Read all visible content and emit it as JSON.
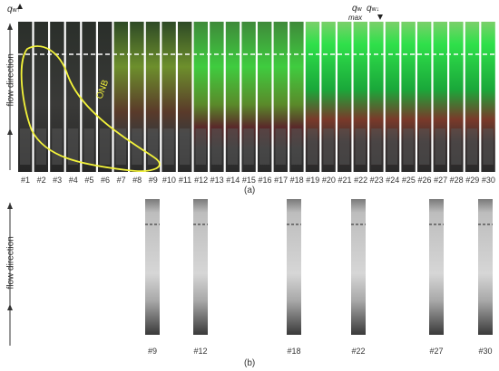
{
  "top": {
    "q_left_label": "q",
    "q_left_sub": "w↑",
    "q_max_label": "q",
    "q_max_sub": "w",
    "q_max_below": "max",
    "q_right_label": "q",
    "q_right_sub": "w↓",
    "axis_label": "flow direction",
    "onb_label": "ONB",
    "panel_letter": "(a)",
    "frames": [
      "#1",
      "#2",
      "#3",
      "#4",
      "#5",
      "#6",
      "#7",
      "#8",
      "#9",
      "#10",
      "#11",
      "#12",
      "#13",
      "#14",
      "#15",
      "#16",
      "#17",
      "#18",
      "#19",
      "#20",
      "#21",
      "#22",
      "#23",
      "#24",
      "#25",
      "#26",
      "#27",
      "#28",
      "#29",
      "#30"
    ]
  },
  "bottom": {
    "axis_label": "flow direction",
    "panel_letter": "(b)",
    "frames": [
      "#9",
      "#12",
      "#18",
      "#22",
      "#27",
      "#30"
    ]
  },
  "colors": {
    "accent_yellow": "#f2f23a",
    "dash_white": "#ffffff"
  }
}
